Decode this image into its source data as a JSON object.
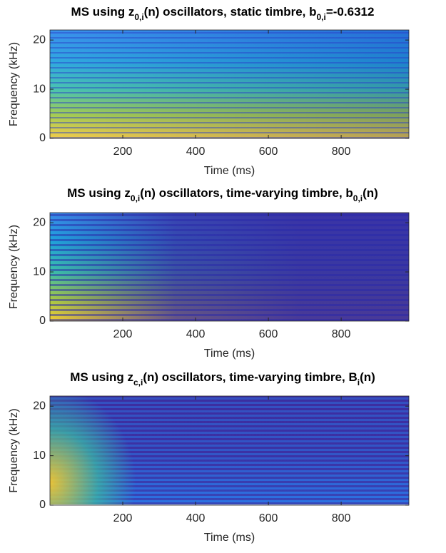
{
  "chart_data": [
    {
      "type": "spectrogram",
      "title": [
        "MS using z",
        "0,i",
        "(n) oscillators, static timbre, b",
        "0,i",
        "=-0.6312"
      ],
      "title_subscripts": [
        false,
        true,
        false,
        true,
        false
      ],
      "xlabel": "Time (ms)",
      "ylabel": "Frequency (kHz)",
      "xlim": [
        0,
        986
      ],
      "ylim": [
        0,
        22.05
      ],
      "xticks": [
        200,
        400,
        600,
        800
      ],
      "yticks": [
        0,
        10,
        20
      ]
    },
    {
      "type": "spectrogram",
      "title": [
        "MS using z",
        "0,i",
        "(n) oscillators, time-varying timbre, b",
        "0,i",
        "(n)"
      ],
      "title_subscripts": [
        false,
        true,
        false,
        true,
        false
      ],
      "xlabel": "Time (ms)",
      "ylabel": "Frequency (kHz)",
      "xlim": [
        0,
        986
      ],
      "ylim": [
        0,
        22.05
      ],
      "xticks": [
        200,
        400,
        600,
        800
      ],
      "yticks": [
        0,
        10,
        20
      ]
    },
    {
      "type": "spectrogram",
      "title": [
        "MS using z",
        "c,i",
        "(n) oscillators, time-varying timbre, B",
        "i",
        "(n)"
      ],
      "title_subscripts": [
        false,
        true,
        false,
        true,
        false
      ],
      "xlabel": "Time (ms)",
      "ylabel": "Frequency (kHz)",
      "xlim": [
        0,
        986
      ],
      "ylim": [
        0,
        22.05
      ],
      "xticks": [
        200,
        400,
        600,
        800
      ],
      "yticks": [
        0,
        10,
        20
      ]
    }
  ]
}
